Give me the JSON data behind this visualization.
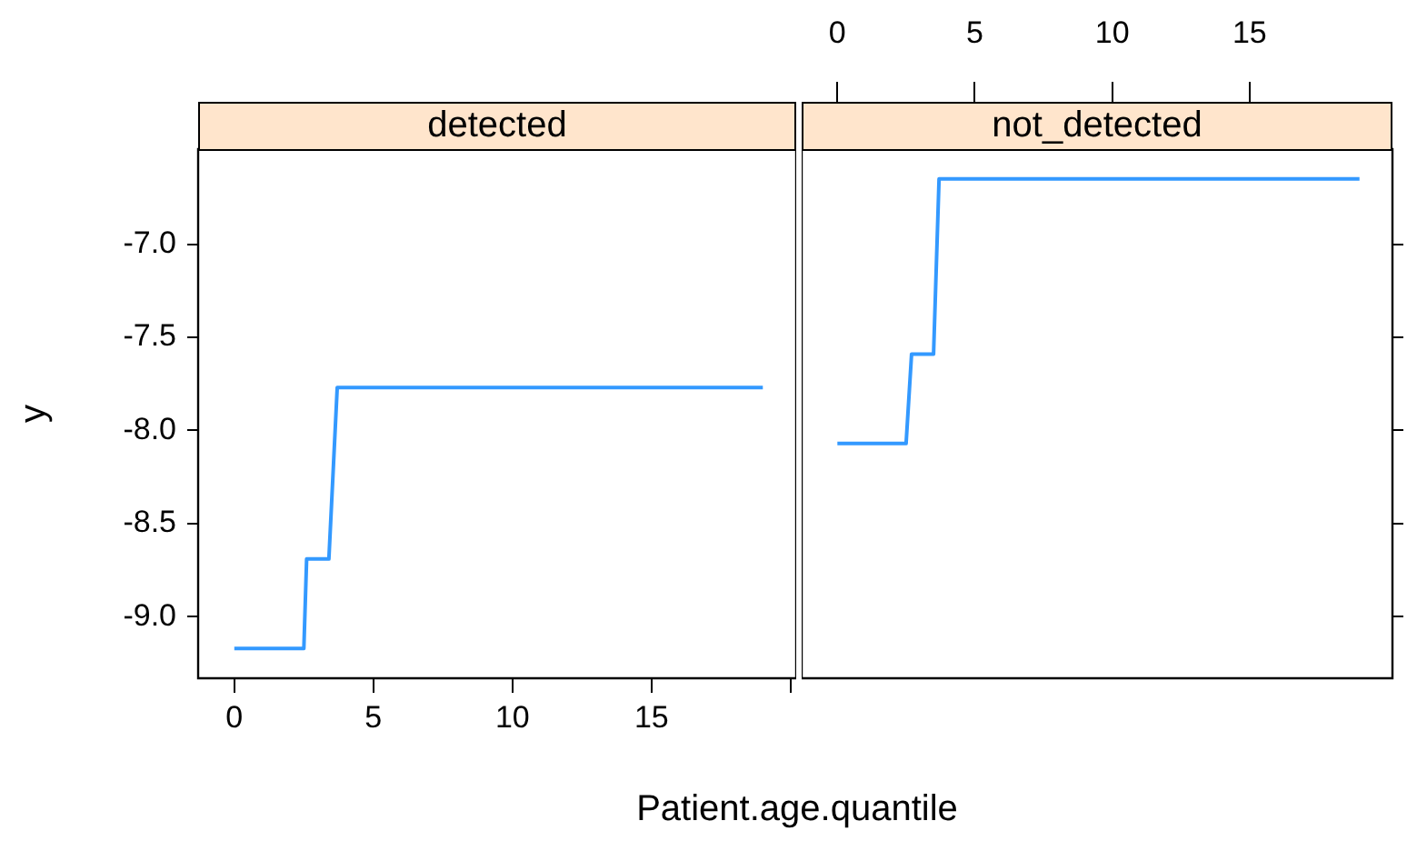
{
  "chart_data": [
    {
      "type": "line",
      "title": "detected",
      "xlabel": "Patient.age.quantile",
      "ylabel": "y",
      "xlim": [
        -1.3,
        20.2
      ],
      "xticks": [
        0,
        5,
        10,
        15,
        {
          "value": 20,
          "label": null
        }
      ],
      "ylim": [
        -9.33,
        -6.49
      ],
      "yticks": [
        {
          "value": -9,
          "label": "-9.0"
        },
        {
          "value": -8.5,
          "label": "-8.5"
        },
        {
          "value": -8,
          "label": "-8.0"
        },
        {
          "value": -7.5,
          "label": "-7.5"
        },
        {
          "value": -7,
          "label": "-7.0"
        }
      ],
      "grid": false,
      "legend": false,
      "marker": "none",
      "line_style": "solid",
      "series": [
        {
          "color": "#3399ff",
          "x": [
            0,
            2.5,
            2.6,
            3.4,
            3.7,
            19
          ],
          "values": [
            -9.17,
            -9.17,
            -8.69,
            -8.69,
            -7.77,
            -7.77
          ]
        }
      ]
    },
    {
      "type": "line",
      "title": "not_detected",
      "xlim": [
        -1.3,
        20.2
      ],
      "xticks": [
        0,
        5,
        10,
        15
      ],
      "ylim": [
        -9.33,
        -6.49
      ],
      "yticks": [
        {
          "value": -9,
          "label": null
        },
        {
          "value": -8.5,
          "label": null
        },
        {
          "value": -8,
          "label": null
        },
        {
          "value": -7.5,
          "label": null
        },
        {
          "value": -7,
          "label": null
        }
      ],
      "tick_labels": "x",
      "grid": false,
      "legend": false,
      "marker": "none",
      "line_style": "solid",
      "series": [
        {
          "color": "#3399ff",
          "x": [
            0,
            2.5,
            2.7,
            3.5,
            3.7,
            19
          ],
          "values": [
            -8.07,
            -8.07,
            -7.59,
            -7.59,
            -6.65,
            -6.65
          ]
        }
      ]
    }
  ]
}
